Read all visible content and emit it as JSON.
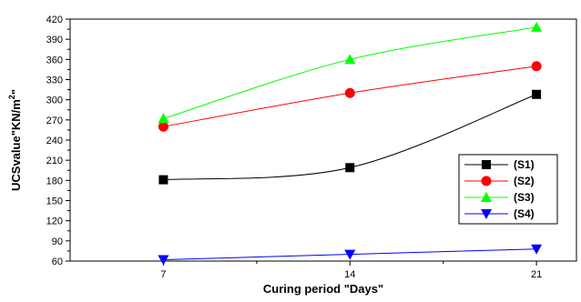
{
  "chart_data": {
    "type": "line",
    "x": [
      7,
      14,
      21
    ],
    "xlabel": "Curing period \"Days\"",
    "ylabel": "UCSvalue\"KN/m",
    "ylabel_superscript": "2",
    "ylabel_suffix": "\"",
    "xlim": [
      3.5,
      22.5
    ],
    "ylim": [
      60,
      420
    ],
    "yticks": [
      60,
      90,
      120,
      150,
      180,
      210,
      240,
      270,
      300,
      330,
      360,
      390,
      420
    ],
    "xticks": [
      7,
      14,
      21
    ],
    "grid": false,
    "legend_position": "right-middle",
    "series": [
      {
        "name": "(S1)",
        "values": [
          181,
          199,
          308
        ],
        "color": "#000000",
        "marker": "square"
      },
      {
        "name": "(S2)",
        "values": [
          260,
          310,
          350
        ],
        "color": "#ff0000",
        "marker": "circle"
      },
      {
        "name": "(S3)",
        "values": [
          272,
          360,
          408
        ],
        "color": "#00ff00",
        "marker": "triangle-up"
      },
      {
        "name": "(S4)",
        "values": [
          62,
          70,
          78
        ],
        "color": "#0000ff",
        "marker": "triangle-down"
      }
    ]
  }
}
